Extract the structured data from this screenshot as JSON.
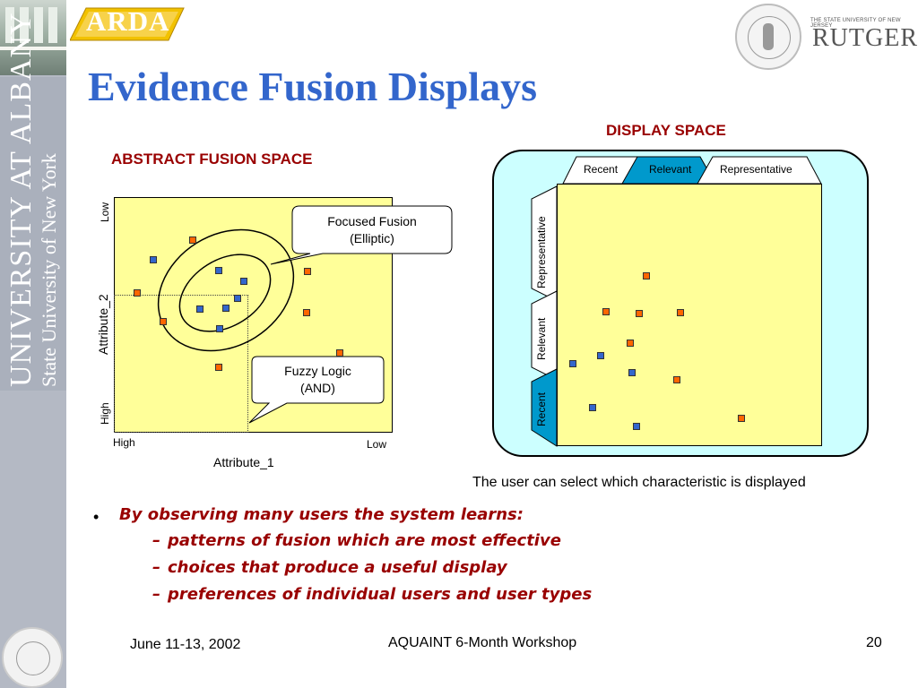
{
  "title": "Evidence Fusion Displays",
  "logos": {
    "arda": "ARDA",
    "rutgers_tagline": "THE STATE UNIVERSITY OF NEW JERSEY",
    "rutgers": "RUTGERS"
  },
  "banner": {
    "line1": "UNIVERSITY AT ALBANY",
    "line2": "State University of New York"
  },
  "abstract_space": {
    "heading": "ABSTRACT FUSION SPACE",
    "x_axis_label": "Attribute_1",
    "y_axis_label": "Attribute_2",
    "x_high": "High",
    "x_low": "Low",
    "y_low": "Low",
    "y_high": "High",
    "callout_focused_line1": "Focused Fusion",
    "callout_focused_line2": "(Elliptic)",
    "callout_fuzzy_line1": "Fuzzy Logic",
    "callout_fuzzy_line2": "(AND)"
  },
  "display_space": {
    "heading": "DISPLAY SPACE",
    "tabs_top": [
      "Recent",
      "Relevant",
      "Representative"
    ],
    "tabs_side": [
      "Representative",
      "Relevant",
      "Recent"
    ],
    "active_top": "Relevant",
    "active_side": "Recent",
    "caption": "The user can select which characteristic is displayed"
  },
  "bullets": {
    "marker": "•",
    "dash": "–",
    "main": "By observing many users the system learns:",
    "subs": [
      "patterns of fusion which are  most effective",
      "choices that produce a useful display",
      "preferences of individual users and user types"
    ]
  },
  "footer": {
    "date": "June 11-13, 2002",
    "event": "AQUAINT 6-Month Workshop",
    "page": "20"
  },
  "colors": {
    "title": "#3366cc",
    "heading": "#990000",
    "plot_fill": "#ffff99",
    "display_bg": "#ccffff",
    "active_tab": "#0099cc",
    "marker_orange": "#ff6600",
    "marker_blue": "#3366cc"
  },
  "icons": [
    "arda-logo",
    "university-seal",
    "rutgers-logo",
    "campus-photo"
  ]
}
